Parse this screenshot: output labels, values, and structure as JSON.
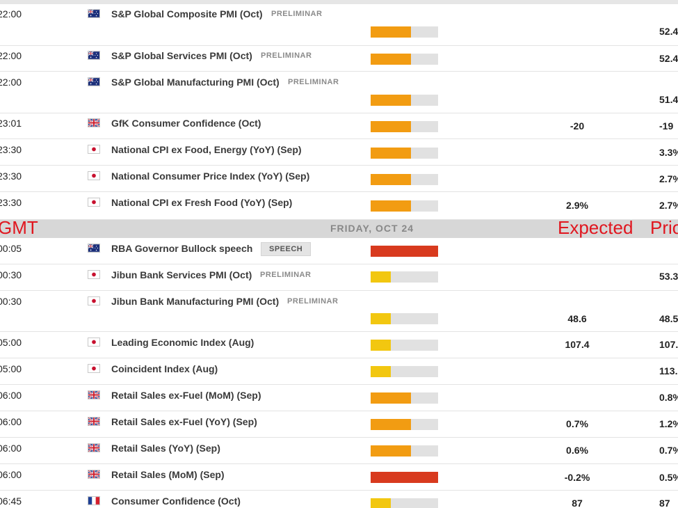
{
  "colors": {
    "high": "#d83a1e",
    "medium": "#f29c12",
    "low": "#f2c710",
    "annotation": "#e0161f"
  },
  "day_header": {
    "title": "FRIDAY, OCT 24"
  },
  "annotations": {
    "gmt": "GMT",
    "expected": "Expected",
    "prior": "Prior"
  },
  "events": [
    {
      "time": "22:00",
      "flag": "australia-flag",
      "name": "S&P Global Composite PMI (Oct)",
      "badge": "PRELIMINAR",
      "impact": "medium",
      "impact_level": 0.6,
      "expected": "",
      "prior": "52.4"
    },
    {
      "time": "22:00",
      "flag": "australia-flag",
      "name": "S&P Global Services PMI (Oct)",
      "badge": "PRELIMINAR",
      "impact": "medium",
      "impact_level": 0.6,
      "expected": "",
      "prior": "52.4"
    },
    {
      "time": "22:00",
      "flag": "australia-flag",
      "name": "S&P Global Manufacturing PMI (Oct)",
      "badge": "PRELIMINAR",
      "impact": "medium",
      "impact_level": 0.6,
      "expected": "",
      "prior": "51.4"
    },
    {
      "time": "23:01",
      "flag": "uk-flag",
      "name": "GfK Consumer Confidence (Oct)",
      "badge": "",
      "impact": "medium",
      "impact_level": 0.6,
      "expected": "-20",
      "prior": "-19"
    },
    {
      "time": "23:30",
      "flag": "japan-flag",
      "name": "National CPI ex Food, Energy (YoY) (Sep)",
      "badge": "",
      "impact": "medium",
      "impact_level": 0.6,
      "expected": "",
      "prior": "3.3%"
    },
    {
      "time": "23:30",
      "flag": "japan-flag",
      "name": "National Consumer Price Index (YoY) (Sep)",
      "badge": "",
      "impact": "medium",
      "impact_level": 0.6,
      "expected": "",
      "prior": "2.7%"
    },
    {
      "time": "23:30",
      "flag": "japan-flag",
      "name": "National CPI ex Fresh Food (YoY) (Sep)",
      "badge": "",
      "impact": "medium",
      "impact_level": 0.6,
      "expected": "2.9%",
      "prior": "2.7%"
    },
    {
      "time": "00:05",
      "flag": "australia-flag",
      "name": "RBA Governor Bullock speech",
      "badge": "SPEECH",
      "impact": "high",
      "impact_level": 1.0,
      "expected": "",
      "prior": ""
    },
    {
      "time": "00:30",
      "flag": "japan-flag",
      "name": "Jibun Bank Services PMI (Oct)",
      "badge": "PRELIMINAR",
      "impact": "low",
      "impact_level": 0.3,
      "expected": "",
      "prior": "53.3"
    },
    {
      "time": "00:30",
      "flag": "japan-flag",
      "name": "Jibun Bank Manufacturing PMI (Oct)",
      "badge": "PRELIMINAR",
      "impact": "low",
      "impact_level": 0.3,
      "expected": "48.6",
      "prior": "48.5"
    },
    {
      "time": "05:00",
      "flag": "japan-flag",
      "name": "Leading Economic Index (Aug)",
      "badge": "",
      "impact": "low",
      "impact_level": 0.3,
      "expected": "107.4",
      "prior": "107."
    },
    {
      "time": "05:00",
      "flag": "japan-flag",
      "name": "Coincident Index (Aug)",
      "badge": "",
      "impact": "low",
      "impact_level": 0.3,
      "expected": "",
      "prior": "113."
    },
    {
      "time": "06:00",
      "flag": "uk-flag",
      "name": "Retail Sales ex-Fuel (MoM) (Sep)",
      "badge": "",
      "impact": "medium",
      "impact_level": 0.6,
      "expected": "",
      "prior": "0.8%"
    },
    {
      "time": "06:00",
      "flag": "uk-flag",
      "name": "Retail Sales ex-Fuel (YoY) (Sep)",
      "badge": "",
      "impact": "medium",
      "impact_level": 0.6,
      "expected": "0.7%",
      "prior": "1.2%"
    },
    {
      "time": "06:00",
      "flag": "uk-flag",
      "name": "Retail Sales (YoY) (Sep)",
      "badge": "",
      "impact": "medium",
      "impact_level": 0.6,
      "expected": "0.6%",
      "prior": "0.7%"
    },
    {
      "time": "06:00",
      "flag": "uk-flag",
      "name": "Retail Sales (MoM) (Sep)",
      "badge": "",
      "impact": "high",
      "impact_level": 1.0,
      "expected": "-0.2%",
      "prior": "0.5%"
    },
    {
      "time": "06:45",
      "flag": "france-flag",
      "name": "Consumer Confidence (Oct)",
      "badge": "",
      "impact": "low",
      "impact_level": 0.3,
      "expected": "87",
      "prior": "87"
    }
  ]
}
